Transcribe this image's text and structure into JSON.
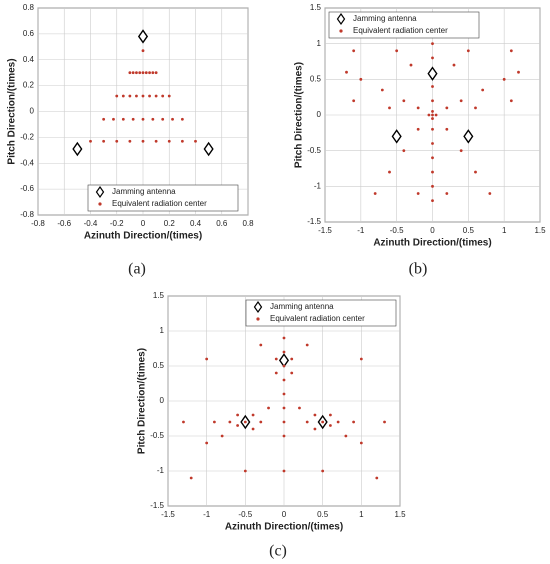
{
  "chart_data": [
    {
      "type": "scatter",
      "panel_label": "(a)",
      "xlabel": "Azinuth Direction/(times)",
      "ylabel": "Pitch Direction/(times)",
      "xlim": [
        -0.8,
        0.8
      ],
      "ylim": [
        -0.8,
        0.8
      ],
      "xticks": [
        -0.8,
        -0.6,
        -0.4,
        -0.2,
        0,
        0.2,
        0.4,
        0.6,
        0.8
      ],
      "yticks": [
        -0.8,
        -0.6,
        -0.4,
        -0.2,
        0,
        0.2,
        0.4,
        0.6,
        0.8
      ],
      "grid": true,
      "legend_position": "lower center",
      "series": [
        {
          "name": "Jamming antenna",
          "marker": "diamond",
          "color": "#000000",
          "x": [
            0,
            -0.5,
            0.5
          ],
          "y": [
            0.58,
            -0.29,
            -0.29
          ]
        },
        {
          "name": "Equivalent radiation center",
          "marker": "dot",
          "color": "#c0392b",
          "x": [
            0,
            -0.1,
            -0.075,
            -0.05,
            -0.025,
            0,
            0.025,
            0.05,
            0.075,
            0.1,
            -0.2,
            -0.15,
            -0.1,
            -0.05,
            0,
            0.05,
            0.1,
            0.15,
            0.2,
            -0.3,
            -0.225,
            -0.15,
            -0.075,
            0,
            0.075,
            0.15,
            0.225,
            0.3,
            -0.4,
            -0.3,
            -0.2,
            -0.1,
            0,
            0.1,
            0.2,
            0.3,
            0.4
          ],
          "y": [
            0.47,
            0.3,
            0.3,
            0.3,
            0.3,
            0.3,
            0.3,
            0.3,
            0.3,
            0.3,
            0.12,
            0.12,
            0.12,
            0.12,
            0.12,
            0.12,
            0.12,
            0.12,
            0.12,
            -0.06,
            -0.06,
            -0.06,
            -0.06,
            -0.06,
            -0.06,
            -0.06,
            -0.06,
            -0.06,
            -0.23,
            -0.23,
            -0.23,
            -0.23,
            -0.23,
            -0.23,
            -0.23,
            -0.23,
            -0.23
          ]
        }
      ]
    },
    {
      "type": "scatter",
      "panel_label": "(b)",
      "xlabel": "Azinuth Direction/(times)",
      "ylabel": "Pitch Direction/(times)",
      "xlim": [
        -1.5,
        1.5
      ],
      "ylim": [
        -1.5,
        1.5
      ],
      "xticks": [
        -1.5,
        -1,
        -0.5,
        0,
        0.5,
        1,
        1.5
      ],
      "yticks": [
        -1.5,
        -1,
        -0.5,
        0,
        0.5,
        1,
        1.5
      ],
      "grid": true,
      "legend_position": "upper left",
      "series": [
        {
          "name": "Jamming antenna",
          "marker": "diamond",
          "color": "#000000",
          "x": [
            0,
            -0.5,
            0.5
          ],
          "y": [
            0.58,
            -0.3,
            -0.3
          ]
        },
        {
          "name": "Equivalent radiation center",
          "marker": "dot",
          "color": "#c0392b",
          "x": [
            0,
            0.05,
            -0.05,
            0,
            0,
            0,
            0,
            0,
            0,
            0,
            0,
            0,
            0,
            0,
            0,
            0.2,
            0.4,
            0.7,
            1,
            1.2,
            -0.2,
            -0.4,
            -0.7,
            -1,
            -1.2,
            0.2,
            0.4,
            0.6,
            0.8,
            -0.2,
            -0.4,
            -0.6,
            -0.8,
            0.3,
            -0.3,
            0.5,
            -0.5,
            1.1,
            -1.1,
            0.2,
            -0.2,
            1.1,
            -1.1,
            0.6,
            -0.6
          ],
          "y": [
            0,
            0,
            0,
            0.05,
            -0.05,
            -0.2,
            -0.4,
            -0.6,
            -0.8,
            -1,
            -1.2,
            0.2,
            0.4,
            0.8,
            1,
            0.1,
            0.2,
            0.35,
            0.5,
            0.6,
            0.1,
            0.2,
            0.35,
            0.5,
            0.6,
            -0.2,
            -0.5,
            -0.8,
            -1.1,
            -0.2,
            -0.5,
            -0.8,
            -1.1,
            0.7,
            0.7,
            0.9,
            0.9,
            0.9,
            0.9,
            -1.1,
            -1.1,
            0.2,
            0.2,
            0.1,
            0.1
          ]
        }
      ]
    },
    {
      "type": "scatter",
      "panel_label": "(c)",
      "xlabel": "Azinuth Direction/(times)",
      "ylabel": "Pitch Direction/(times)",
      "xlim": [
        -1.5,
        1.5
      ],
      "ylim": [
        -1.5,
        1.5
      ],
      "xticks": [
        -1.5,
        -1,
        -0.5,
        0,
        0.5,
        1,
        1.5
      ],
      "yticks": [
        -1.5,
        -1,
        -0.5,
        0,
        0.5,
        1,
        1.5
      ],
      "grid": true,
      "legend_position": "upper right",
      "series": [
        {
          "name": "Jamming antenna",
          "marker": "diamond",
          "color": "#000000",
          "x": [
            0,
            -0.5,
            0.5
          ],
          "y": [
            0.58,
            -0.3,
            -0.3
          ]
        },
        {
          "name": "Equivalent radiation center",
          "marker": "dot",
          "color": "#c0392b",
          "x": [
            0,
            0.1,
            -0.1,
            0.1,
            -0.1,
            0,
            0,
            0.1,
            -0.1,
            0,
            0,
            0,
            0,
            0,
            -0.5,
            -0.6,
            -0.4,
            -0.6,
            -0.4,
            -0.7,
            -0.3,
            -0.8,
            -1,
            -0.9,
            -0.2,
            0.5,
            0.6,
            0.4,
            0.6,
            0.4,
            0.7,
            0.3,
            0.8,
            1,
            0.9,
            0.2,
            -1,
            1,
            -1.3,
            1.3,
            -0.5,
            0.5,
            -0.3,
            0.3,
            0,
            -1.2,
            1.2
          ],
          "y": [
            0.5,
            0.6,
            0.6,
            0.4,
            0.4,
            0.7,
            0.9,
            1.1,
            1.1,
            0.3,
            0.1,
            -0.1,
            -0.3,
            -0.5,
            -0.3,
            -0.2,
            -0.2,
            -0.35,
            -0.4,
            -0.3,
            -0.3,
            -0.5,
            -0.6,
            -0.3,
            -0.1,
            -0.3,
            -0.2,
            -0.2,
            -0.35,
            -0.4,
            -0.3,
            -0.3,
            -0.5,
            -0.6,
            -0.3,
            -0.1,
            0.6,
            0.6,
            -0.3,
            -0.3,
            -1,
            -1,
            0.8,
            0.8,
            -1,
            -1.1,
            -1.1
          ]
        }
      ]
    }
  ]
}
